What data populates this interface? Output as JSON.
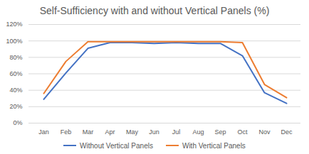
{
  "chart_data": {
    "type": "line",
    "title": "Self-Sufficiency with and without Vertical Panels (%)",
    "categories": [
      "Jan",
      "Feb",
      "Mar",
      "Apr",
      "May",
      "Jun",
      "Jul",
      "Aug",
      "Sep",
      "Oct",
      "Nov",
      "Dec"
    ],
    "series": [
      {
        "name": "Without Vertical Panels",
        "color": "#4472c4",
        "values": [
          29,
          61,
          91,
          98,
          98,
          97,
          98,
          97,
          97,
          82,
          37,
          24
        ]
      },
      {
        "name": "With Vertical Panels",
        "color": "#ed7d31",
        "values": [
          36,
          75,
          99,
          99,
          99,
          99,
          99,
          99,
          99,
          98,
          47,
          31
        ]
      }
    ],
    "ylim": [
      0,
      120
    ],
    "yticks": [
      {
        "value": 0,
        "label": "0%"
      },
      {
        "value": 20,
        "label": "20%"
      },
      {
        "value": 40,
        "label": "40%"
      },
      {
        "value": 60,
        "label": "60%"
      },
      {
        "value": 80,
        "label": "80%"
      },
      {
        "value": 100,
        "label": "100%"
      },
      {
        "value": 120,
        "label": "120%"
      }
    ],
    "grid": true,
    "legend": "bottom"
  }
}
